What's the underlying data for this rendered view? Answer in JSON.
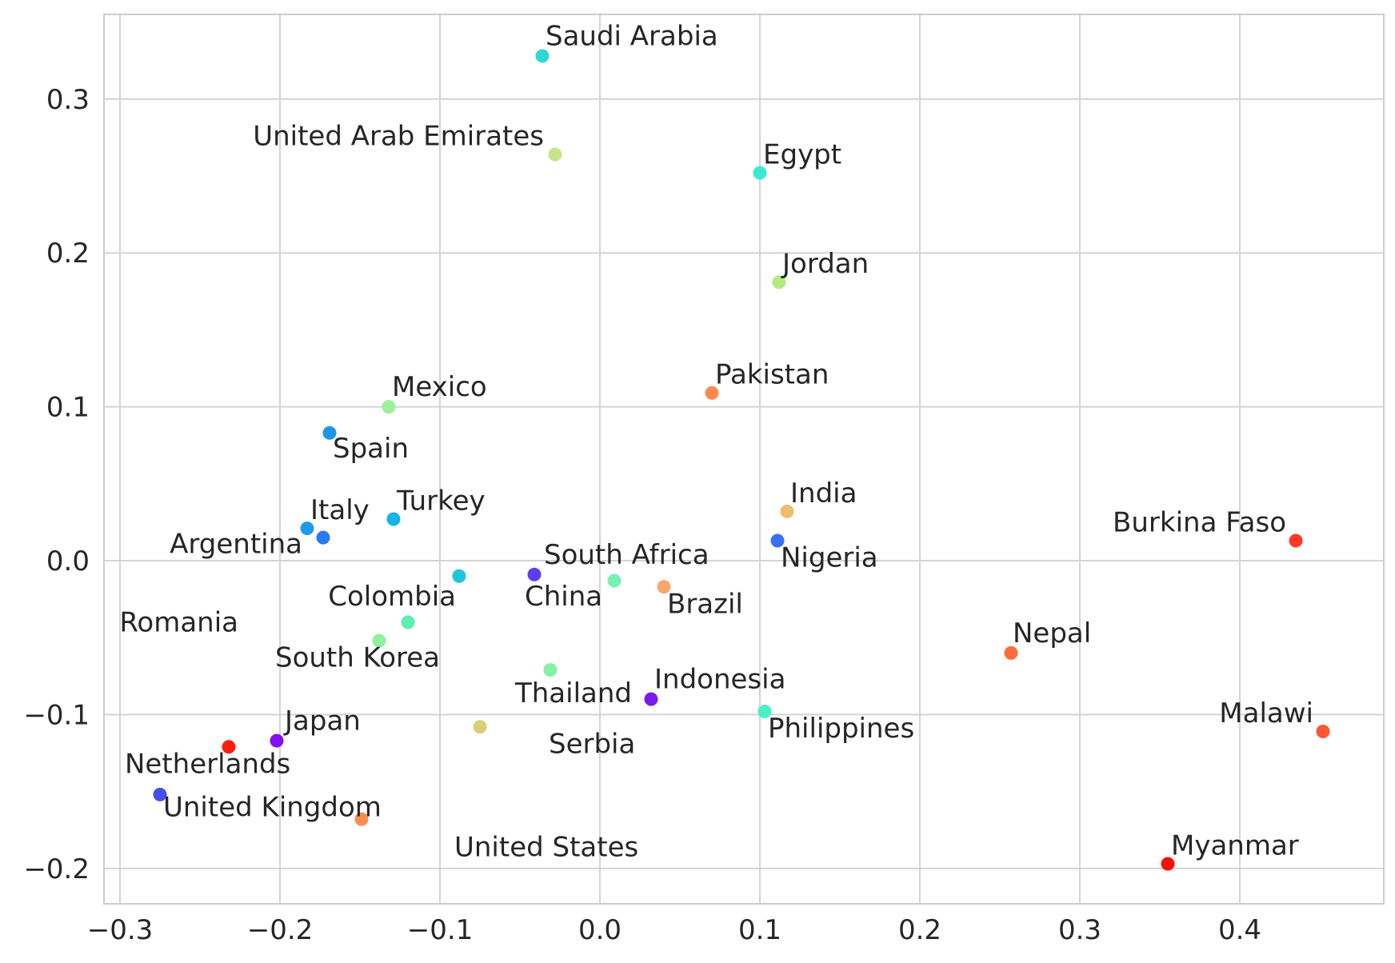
{
  "chart_data": {
    "type": "scatter",
    "title": "",
    "xlabel": "",
    "ylabel": "",
    "xlim": [
      -0.31,
      0.49
    ],
    "ylim": [
      -0.223,
      0.355
    ],
    "x_ticks": [
      -0.3,
      -0.2,
      -0.1,
      0.0,
      0.1,
      0.2,
      0.3,
      0.4
    ],
    "x_tick_labels": [
      "−0.3",
      "−0.2",
      "−0.1",
      "0.0",
      "0.1",
      "0.2",
      "0.3",
      "0.4"
    ],
    "y_ticks": [
      -0.2,
      -0.1,
      0.0,
      0.1,
      0.2,
      0.3
    ],
    "y_tick_labels": [
      "−0.2",
      "−0.1",
      "0.0",
      "0.1",
      "0.2",
      "0.3"
    ],
    "grid": true,
    "points": [
      {
        "x": -0.036,
        "y": 0.328,
        "color": "#2ed8d8"
      },
      {
        "x": -0.028,
        "y": 0.264,
        "color": "#c9e38a"
      },
      {
        "x": 0.1,
        "y": 0.252,
        "color": "#3de8d0"
      },
      {
        "x": 0.112,
        "y": 0.181,
        "color": "#b4ea82"
      },
      {
        "x": 0.07,
        "y": 0.109,
        "color": "#fb8a4e"
      },
      {
        "x": -0.132,
        "y": 0.1,
        "color": "#9df09a"
      },
      {
        "x": -0.169,
        "y": 0.083,
        "color": "#1e96e8"
      },
      {
        "x": 0.117,
        "y": 0.032,
        "color": "#f0bd6a"
      },
      {
        "x": -0.129,
        "y": 0.027,
        "color": "#14b4e8"
      },
      {
        "x": -0.183,
        "y": 0.021,
        "color": "#1e9ae8"
      },
      {
        "x": -0.173,
        "y": 0.015,
        "color": "#2a7af0"
      },
      {
        "x": 0.111,
        "y": 0.013,
        "color": "#3b6ff2"
      },
      {
        "x": 0.435,
        "y": 0.013,
        "color": "#ff3a24"
      },
      {
        "x": -0.088,
        "y": -0.01,
        "color": "#22c4dc"
      },
      {
        "x": -0.041,
        "y": -0.009,
        "color": "#5a3ff2"
      },
      {
        "x": 0.009,
        "y": -0.013,
        "color": "#78f0b4"
      },
      {
        "x": 0.04,
        "y": -0.017,
        "color": "#f8a66a"
      },
      {
        "x": -0.12,
        "y": -0.04,
        "color": "#5af0b0"
      },
      {
        "x": -0.138,
        "y": -0.052,
        "color": "#92f09c"
      },
      {
        "x": 0.257,
        "y": -0.06,
        "color": "#ff6a3c"
      },
      {
        "x": -0.031,
        "y": -0.071,
        "color": "#86f0a4"
      },
      {
        "x": 0.032,
        "y": -0.09,
        "color": "#7a18f0"
      },
      {
        "x": 0.103,
        "y": -0.098,
        "color": "#4af0c2"
      },
      {
        "x": -0.075,
        "y": -0.108,
        "color": "#d6d07a"
      },
      {
        "x": -0.232,
        "y": -0.121,
        "color": "#ff1c0e"
      },
      {
        "x": -0.202,
        "y": -0.117,
        "color": "#8010f2"
      },
      {
        "x": 0.452,
        "y": -0.111,
        "color": "#ff5632"
      },
      {
        "x": -0.275,
        "y": -0.152,
        "color": "#464ef0"
      },
      {
        "x": -0.149,
        "y": -0.168,
        "color": "#fb8c50"
      },
      {
        "x": 0.355,
        "y": -0.197,
        "color": "#ff0c06"
      }
    ],
    "labels": [
      {
        "text": "Saudi Arabia",
        "x": -0.034,
        "y": 0.335,
        "anchor": "start"
      },
      {
        "text": "United Arab Emirates",
        "x": -0.035,
        "y": 0.27,
        "anchor": "end"
      },
      {
        "text": "Egypt",
        "x": 0.102,
        "y": 0.258,
        "anchor": "start"
      },
      {
        "text": "Jordan",
        "x": 0.114,
        "y": 0.187,
        "anchor": "start"
      },
      {
        "text": "Pakistan",
        "x": 0.072,
        "y": 0.115,
        "anchor": "start"
      },
      {
        "text": "Mexico",
        "x": -0.13,
        "y": 0.107,
        "anchor": "start"
      },
      {
        "text": "Spain",
        "x": -0.167,
        "y": 0.067,
        "anchor": "start"
      },
      {
        "text": "India",
        "x": 0.119,
        "y": 0.038,
        "anchor": "start"
      },
      {
        "text": "Turkey",
        "x": -0.127,
        "y": 0.033,
        "anchor": "start"
      },
      {
        "text": "Italy",
        "x": -0.181,
        "y": 0.027,
        "anchor": "start"
      },
      {
        "text": "Burkina Faso",
        "x": 0.429,
        "y": 0.019,
        "anchor": "end"
      },
      {
        "text": "Argentina",
        "x": -0.186,
        "y": 0.005,
        "anchor": "end"
      },
      {
        "text": "South Africa",
        "x": -0.035,
        "y": -0.002,
        "anchor": "start"
      },
      {
        "text": "Nigeria",
        "x": 0.113,
        "y": -0.004,
        "anchor": "start"
      },
      {
        "text": "Colombia",
        "x": -0.09,
        "y": -0.029,
        "anchor": "end"
      },
      {
        "text": "China",
        "x": -0.047,
        "y": -0.029,
        "anchor": "start"
      },
      {
        "text": "Brazil",
        "x": 0.042,
        "y": -0.034,
        "anchor": "start"
      },
      {
        "text": "Romania",
        "x": -0.226,
        "y": -0.046,
        "anchor": "end"
      },
      {
        "text": "Nepal",
        "x": 0.258,
        "y": -0.053,
        "anchor": "start"
      },
      {
        "text": "South Korea",
        "x": -0.1,
        "y": -0.069,
        "anchor": "end"
      },
      {
        "text": "Indonesia",
        "x": 0.034,
        "y": -0.083,
        "anchor": "start"
      },
      {
        "text": "Thailand",
        "x": 0.02,
        "y": -0.092,
        "anchor": "end"
      },
      {
        "text": "Malawi",
        "x": 0.446,
        "y": -0.105,
        "anchor": "end"
      },
      {
        "text": "Japan",
        "x": -0.197,
        "y": -0.11,
        "anchor": "start"
      },
      {
        "text": "Philippines",
        "x": 0.105,
        "y": -0.115,
        "anchor": "start"
      },
      {
        "text": "Serbia",
        "x": -0.032,
        "y": -0.125,
        "anchor": "start"
      },
      {
        "text": "Netherlands",
        "x": -0.297,
        "y": -0.138,
        "anchor": "start"
      },
      {
        "text": "United Kingdom",
        "x": -0.273,
        "y": -0.166,
        "anchor": "start"
      },
      {
        "text": "United States",
        "x": -0.091,
        "y": -0.192,
        "anchor": "start"
      },
      {
        "text": "Myanmar",
        "x": 0.357,
        "y": -0.191,
        "anchor": "start"
      }
    ]
  }
}
